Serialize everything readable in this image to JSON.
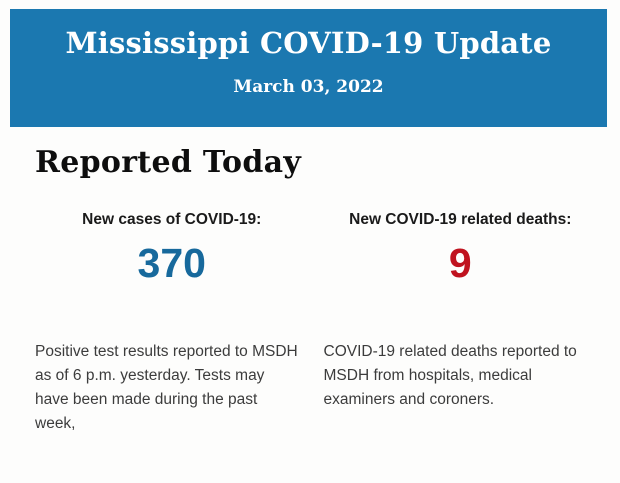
{
  "colors": {
    "header_bg": "#1b78b0",
    "header_text": "#ffffff",
    "heading_text": "#0e0e0e",
    "cases_value": "#17699c",
    "deaths_value": "#c0131f",
    "body_text": "#3c3c3c",
    "page_bg": "#fdfdfc"
  },
  "header": {
    "title": "Mississippi COVID-19 Update",
    "date": "March 03, 2022"
  },
  "report": {
    "heading": "Reported Today",
    "stats": [
      {
        "id": "new-cases",
        "label": "New cases of COVID-19:",
        "value": "370",
        "description": "Positive test results reported to MSDH as of 6 p.m. yesterday. Tests may have been made during the past week,"
      },
      {
        "id": "new-deaths",
        "label": "New COVID-19 related deaths:",
        "value": "9",
        "description": "COVID-19 related deaths reported to MSDH from hospitals, medical examiners and coroners."
      }
    ]
  }
}
